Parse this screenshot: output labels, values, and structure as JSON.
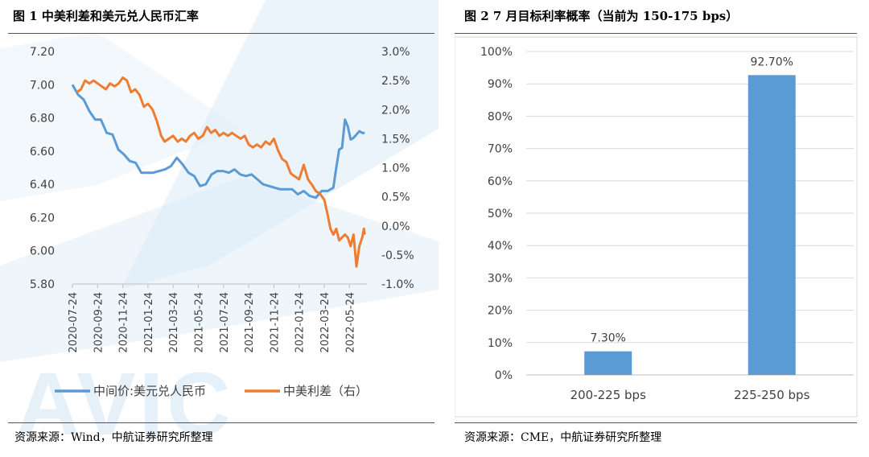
{
  "left": {
    "title": "图 1 中美利差和美元兑人民币汇率",
    "source": "资源来源：Wind，中航证券研究所整理",
    "watermark": "AVIC"
  },
  "right": {
    "title": "图 2   7 月目标利率概率（当前为 150-175 bps）",
    "source": "资源来源：CME，中航证券研究所整理"
  },
  "colors": {
    "series_blue": "#5b9bd5",
    "series_orange": "#ed7d31",
    "rule": "#2b5c95",
    "grid": "#d9d9d9",
    "watermark": "#cfe3f3"
  },
  "chart_data": [
    {
      "type": "line",
      "title": "",
      "x_tick_labels": [
        "2020-07-24",
        "2020-09-24",
        "2020-11-24",
        "2021-01-24",
        "2021-03-24",
        "2021-05-24",
        "2021-07-24",
        "2021-09-24",
        "2021-11-24",
        "2022-01-24",
        "2022-03-24",
        "2022-05-24"
      ],
      "x_range": [
        "2020-07-24",
        "2022-06-30"
      ],
      "y_left": {
        "range": [
          5.8,
          7.2
        ],
        "ticks": [
          "7.20",
          "7.00",
          "6.80",
          "6.60",
          "6.40",
          "6.20",
          "6.00",
          "5.80"
        ]
      },
      "y_right": {
        "range": [
          -1.0,
          3.0
        ],
        "ticks": [
          "3.0%",
          "2.5%",
          "2.0%",
          "1.5%",
          "1.0%",
          "0.5%",
          "0.0%",
          "-0.5%",
          "-1.0%"
        ]
      },
      "legend_position": "bottom",
      "grid": false,
      "series": [
        {
          "name": "中间价:美元兑人民币",
          "axis": "left",
          "color": "#5b9bd5",
          "points": [
            [
              "2020-07-24",
              7.0
            ],
            [
              "2020-08-07",
              6.94
            ],
            [
              "2020-08-21",
              6.91
            ],
            [
              "2020-09-04",
              6.84
            ],
            [
              "2020-09-18",
              6.79
            ],
            [
              "2020-10-02",
              6.79
            ],
            [
              "2020-10-16",
              6.71
            ],
            [
              "2020-10-30",
              6.7
            ],
            [
              "2020-11-13",
              6.61
            ],
            [
              "2020-11-27",
              6.58
            ],
            [
              "2020-12-11",
              6.54
            ],
            [
              "2020-12-25",
              6.53
            ],
            [
              "2021-01-08",
              6.47
            ],
            [
              "2021-01-22",
              6.47
            ],
            [
              "2021-02-05",
              6.47
            ],
            [
              "2021-02-19",
              6.48
            ],
            [
              "2021-03-05",
              6.49
            ],
            [
              "2021-03-19",
              6.51
            ],
            [
              "2021-04-02",
              6.56
            ],
            [
              "2021-04-16",
              6.52
            ],
            [
              "2021-04-30",
              6.47
            ],
            [
              "2021-05-14",
              6.45
            ],
            [
              "2021-05-28",
              6.39
            ],
            [
              "2021-06-11",
              6.4
            ],
            [
              "2021-06-25",
              6.46
            ],
            [
              "2021-07-09",
              6.48
            ],
            [
              "2021-07-23",
              6.48
            ],
            [
              "2021-08-06",
              6.47
            ],
            [
              "2021-08-20",
              6.49
            ],
            [
              "2021-09-03",
              6.46
            ],
            [
              "2021-09-17",
              6.45
            ],
            [
              "2021-10-01",
              6.46
            ],
            [
              "2021-10-15",
              6.43
            ],
            [
              "2021-10-29",
              6.4
            ],
            [
              "2021-11-12",
              6.39
            ],
            [
              "2021-11-26",
              6.38
            ],
            [
              "2021-12-10",
              6.37
            ],
            [
              "2021-12-24",
              6.37
            ],
            [
              "2022-01-07",
              6.37
            ],
            [
              "2022-01-21",
              6.34
            ],
            [
              "2022-02-04",
              6.36
            ],
            [
              "2022-02-18",
              6.33
            ],
            [
              "2022-03-04",
              6.32
            ],
            [
              "2022-03-18",
              6.36
            ],
            [
              "2022-04-01",
              6.36
            ],
            [
              "2022-04-15",
              6.38
            ],
            [
              "2022-04-22",
              6.5
            ],
            [
              "2022-04-29",
              6.61
            ],
            [
              "2022-05-06",
              6.62
            ],
            [
              "2022-05-13",
              6.79
            ],
            [
              "2022-05-20",
              6.75
            ],
            [
              "2022-05-27",
              6.67
            ],
            [
              "2022-06-03",
              6.68
            ],
            [
              "2022-06-10",
              6.7
            ],
            [
              "2022-06-17",
              6.72
            ],
            [
              "2022-06-24",
              6.71
            ],
            [
              "2022-06-30",
              6.71
            ]
          ]
        },
        {
          "name": "中美利差（右）",
          "axis": "right",
          "color": "#ed7d31",
          "points": [
            [
              "2020-08-04",
              2.3
            ],
            [
              "2020-08-14",
              2.35
            ],
            [
              "2020-08-24",
              2.5
            ],
            [
              "2020-09-04",
              2.45
            ],
            [
              "2020-09-14",
              2.5
            ],
            [
              "2020-09-24",
              2.45
            ],
            [
              "2020-10-04",
              2.4
            ],
            [
              "2020-10-14",
              2.35
            ],
            [
              "2020-10-24",
              2.45
            ],
            [
              "2020-11-04",
              2.4
            ],
            [
              "2020-11-14",
              2.45
            ],
            [
              "2020-11-24",
              2.55
            ],
            [
              "2020-12-04",
              2.5
            ],
            [
              "2020-12-14",
              2.3
            ],
            [
              "2020-12-24",
              2.35
            ],
            [
              "2021-01-04",
              2.25
            ],
            [
              "2021-01-14",
              2.05
            ],
            [
              "2021-01-24",
              2.1
            ],
            [
              "2021-02-04",
              2.0
            ],
            [
              "2021-02-14",
              1.8
            ],
            [
              "2021-02-24",
              1.55
            ],
            [
              "2021-03-04",
              1.45
            ],
            [
              "2021-03-14",
              1.5
            ],
            [
              "2021-03-24",
              1.55
            ],
            [
              "2021-04-04",
              1.45
            ],
            [
              "2021-04-14",
              1.5
            ],
            [
              "2021-04-24",
              1.45
            ],
            [
              "2021-05-04",
              1.55
            ],
            [
              "2021-05-14",
              1.6
            ],
            [
              "2021-05-24",
              1.5
            ],
            [
              "2021-06-04",
              1.55
            ],
            [
              "2021-06-14",
              1.7
            ],
            [
              "2021-06-24",
              1.6
            ],
            [
              "2021-07-04",
              1.65
            ],
            [
              "2021-07-14",
              1.55
            ],
            [
              "2021-07-24",
              1.6
            ],
            [
              "2021-08-04",
              1.55
            ],
            [
              "2021-08-14",
              1.6
            ],
            [
              "2021-08-24",
              1.55
            ],
            [
              "2021-09-04",
              1.5
            ],
            [
              "2021-09-14",
              1.55
            ],
            [
              "2021-09-24",
              1.4
            ],
            [
              "2021-10-04",
              1.35
            ],
            [
              "2021-10-14",
              1.4
            ],
            [
              "2021-10-24",
              1.35
            ],
            [
              "2021-11-04",
              1.45
            ],
            [
              "2021-11-14",
              1.4
            ],
            [
              "2021-11-24",
              1.5
            ],
            [
              "2021-12-04",
              1.3
            ],
            [
              "2021-12-14",
              1.15
            ],
            [
              "2021-12-24",
              1.1
            ],
            [
              "2022-01-04",
              0.9
            ],
            [
              "2022-01-14",
              0.85
            ],
            [
              "2022-01-24",
              0.8
            ],
            [
              "2022-02-04",
              1.05
            ],
            [
              "2022-02-14",
              0.8
            ],
            [
              "2022-02-24",
              0.7
            ],
            [
              "2022-03-04",
              0.6
            ],
            [
              "2022-03-14",
              0.55
            ],
            [
              "2022-03-24",
              0.45
            ],
            [
              "2022-04-01",
              0.2
            ],
            [
              "2022-04-08",
              -0.05
            ],
            [
              "2022-04-15",
              -0.15
            ],
            [
              "2022-04-22",
              -0.05
            ],
            [
              "2022-04-29",
              -0.25
            ],
            [
              "2022-05-06",
              -0.2
            ],
            [
              "2022-05-13",
              -0.15
            ],
            [
              "2022-05-20",
              -0.2
            ],
            [
              "2022-05-27",
              -0.35
            ],
            [
              "2022-06-03",
              -0.15
            ],
            [
              "2022-06-10",
              -0.7
            ],
            [
              "2022-06-17",
              -0.35
            ],
            [
              "2022-06-24",
              -0.2
            ],
            [
              "2022-06-28",
              -0.05
            ],
            [
              "2022-06-30",
              -0.15
            ]
          ]
        }
      ]
    },
    {
      "type": "bar",
      "title": "",
      "categories": [
        "200-225 bps",
        "225-250 bps"
      ],
      "values": [
        7.3,
        92.7
      ],
      "data_labels": [
        "7.30%",
        "92.70%"
      ],
      "ylim": [
        0,
        100
      ],
      "y_ticks": [
        "100%",
        "90%",
        "80%",
        "70%",
        "60%",
        "50%",
        "40%",
        "30%",
        "20%",
        "10%",
        "0%"
      ],
      "color": "#5b9bd5",
      "grid": true
    }
  ]
}
